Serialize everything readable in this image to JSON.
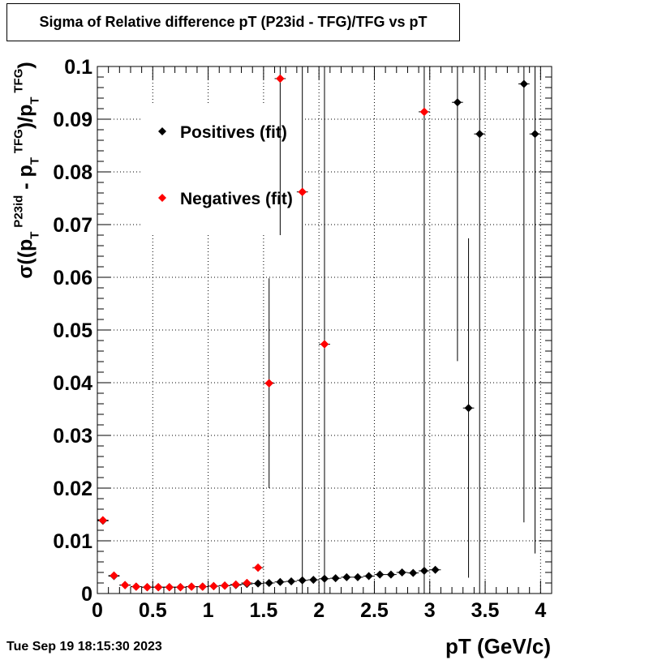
{
  "title": "Sigma of Relative difference pT (P23id - TFG)/TFG vs pT",
  "timestamp": "Tue Sep 19 18:15:30 2023",
  "chart_data": {
    "type": "scatter",
    "title": "Sigma of Relative difference pT (P23id - TFG)/TFG vs pT",
    "xlabel": "pT (GeV/c)",
    "ylabel": {
      "sigma": "σ((p",
      "t1": "T",
      "sup1": "P23id",
      "mid": " - p",
      "t2": "T",
      "sup2": "TFG",
      "close": ")/p",
      "t3": "T",
      "sup3": "TFG",
      "end": ")"
    },
    "xlim": [
      0,
      4.1
    ],
    "ylim": [
      0,
      0.1
    ],
    "x_ticks": [
      0,
      0.5,
      1,
      1.5,
      2,
      2.5,
      3,
      3.5,
      4
    ],
    "x_tick_labels": [
      "0",
      "0.5",
      "1",
      "1.5",
      "2",
      "2.5",
      "3",
      "3.5",
      "4"
    ],
    "y_ticks": [
      0,
      0.01,
      0.02,
      0.03,
      0.04,
      0.05,
      0.06,
      0.07,
      0.08,
      0.09,
      0.1
    ],
    "y_tick_labels": [
      "0",
      "0.01",
      "0.02",
      "0.03",
      "0.04",
      "0.05",
      "0.06",
      "0.07",
      "0.08",
      "0.09",
      "0.1"
    ],
    "grid": true,
    "legend_position": "top-left",
    "series": [
      {
        "name": "Positives (fit)",
        "color": "#000000",
        "x": [
          0.05,
          0.15,
          0.25,
          0.35,
          0.45,
          0.55,
          0.65,
          0.75,
          0.85,
          0.95,
          1.05,
          1.15,
          1.25,
          1.35,
          1.45,
          1.55,
          1.65,
          1.75,
          1.85,
          1.95,
          2.05,
          2.15,
          2.25,
          2.35,
          2.45,
          2.55,
          2.65,
          2.75,
          2.85,
          2.95,
          3.05,
          3.25,
          3.35,
          3.45,
          3.85,
          3.95
        ],
        "y": [
          0.0138,
          0.0033,
          0.0016,
          0.0013,
          0.0012,
          0.0012,
          0.0012,
          0.0012,
          0.0013,
          0.0013,
          0.0014,
          0.0015,
          0.0016,
          0.0018,
          0.0019,
          0.002,
          0.0022,
          0.0023,
          0.0025,
          0.0026,
          0.0028,
          0.0029,
          0.0031,
          0.0031,
          0.0033,
          0.0036,
          0.0036,
          0.004,
          0.0039,
          0.0043,
          0.0045,
          0.0932,
          0.0352,
          0.0872,
          0.0967,
          0.0872
        ],
        "err": [
          0.0003,
          0.0002,
          0.0001,
          0.0001,
          0.0001,
          0.0001,
          0.0001,
          0.0001,
          0.0001,
          0.0001,
          0.0001,
          0.0001,
          0.0001,
          0.0001,
          0.0001,
          0.0001,
          0.0001,
          0.0001,
          0.0001,
          0.0001,
          0.0001,
          0.0001,
          0.0001,
          0.0001,
          0.0001,
          0.0001,
          0.0001,
          0.0001,
          0.0001,
          0.0001,
          0.0002,
          0.0491,
          0.0322,
          0.2,
          0.0832,
          0.0796
        ]
      },
      {
        "name": "Negatives (fit)",
        "color": "#ff0000",
        "x": [
          0.05,
          0.15,
          0.25,
          0.35,
          0.45,
          0.55,
          0.65,
          0.75,
          0.85,
          0.95,
          1.05,
          1.15,
          1.25,
          1.35,
          1.45,
          1.55,
          1.65,
          1.85,
          2.05,
          2.95
        ],
        "y": [
          0.0139,
          0.0034,
          0.0016,
          0.0013,
          0.0012,
          0.0012,
          0.0012,
          0.0012,
          0.0013,
          0.0013,
          0.0014,
          0.0015,
          0.0017,
          0.002,
          0.0049,
          0.0399,
          0.0977,
          0.0762,
          0.0473,
          0.0914
        ],
        "err": [
          0.0003,
          0.0002,
          0.0001,
          0.0001,
          0.0001,
          0.0001,
          0.0001,
          0.0001,
          0.0001,
          0.0001,
          0.0001,
          0.0001,
          0.0001,
          0.0001,
          0.0005,
          0.0199,
          0.0297,
          0.2,
          0.2,
          0.2
        ]
      }
    ]
  }
}
